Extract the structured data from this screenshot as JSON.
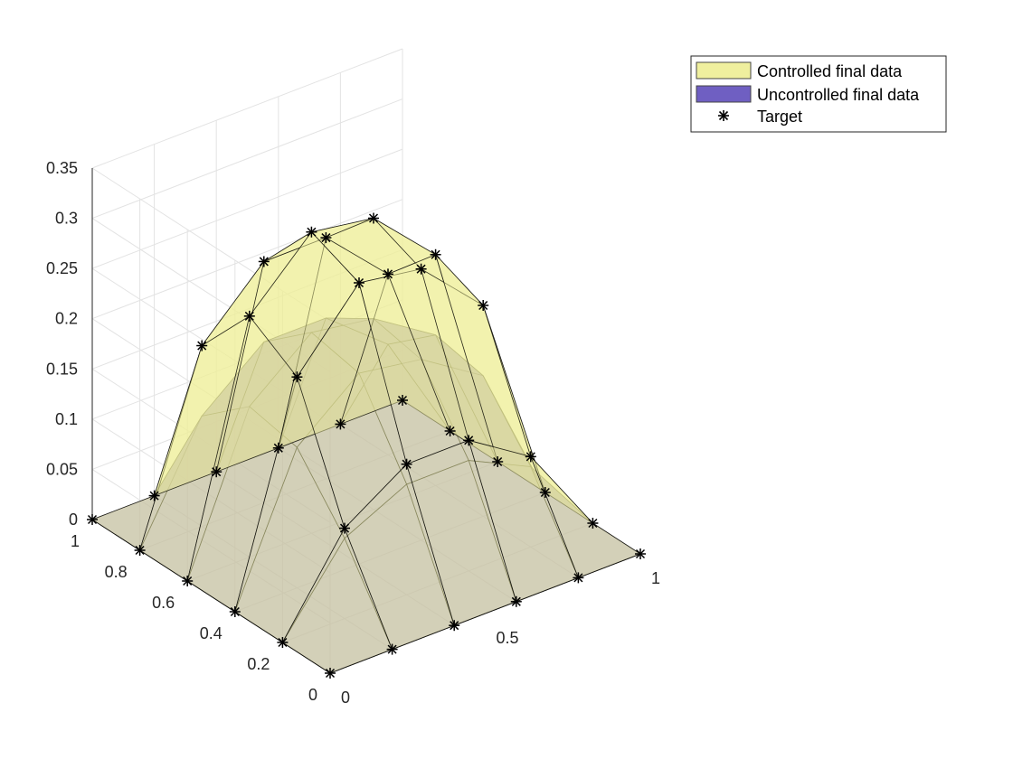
{
  "chart_data": {
    "type": "surface3d",
    "view": "isometric-3d",
    "xlim": [
      0,
      1
    ],
    "ylim": [
      0,
      1
    ],
    "zlim": [
      0,
      0.35
    ],
    "x_ticks": [
      "0",
      "0.5",
      "1"
    ],
    "y_ticks": [
      "0",
      "0.2",
      "0.4",
      "0.6",
      "0.8",
      "1"
    ],
    "z_ticks": [
      "0",
      "0.05",
      "0.1",
      "0.15",
      "0.2",
      "0.25",
      "0.3",
      "0.35"
    ],
    "grid": true,
    "legend_position": "top-right",
    "grid_x": [
      0,
      0.2,
      0.4,
      0.6,
      0.8,
      1.0
    ],
    "grid_y": [
      0,
      0.2,
      0.4,
      0.6,
      0.8,
      1.0
    ],
    "series": [
      {
        "name": "Controlled final data",
        "kind": "surface",
        "color": "#eeee99",
        "alpha": 0.55,
        "z": [
          [
            0,
            0,
            0,
            0,
            0,
            0
          ],
          [
            0,
            0.09,
            0.13,
            0.13,
            0.09,
            0
          ],
          [
            0,
            0.21,
            0.28,
            0.27,
            0.21,
            0
          ],
          [
            0,
            0.24,
            0.3,
            0.29,
            0.23,
            0
          ],
          [
            0,
            0.18,
            0.24,
            0.24,
            0.18,
            0
          ],
          [
            0,
            0,
            0,
            0,
            0,
            0
          ]
        ]
      },
      {
        "name": "Uncontrolled final data",
        "kind": "surface",
        "color": "#6655bb",
        "alpha": 0.5,
        "z": [
          [
            0,
            0,
            0,
            0,
            0,
            0
          ],
          [
            0,
            0.08,
            0.11,
            0.11,
            0.08,
            0
          ],
          [
            0,
            0.14,
            0.19,
            0.18,
            0.14,
            0
          ],
          [
            0,
            0.15,
            0.2,
            0.19,
            0.15,
            0
          ],
          [
            0,
            0.11,
            0.16,
            0.16,
            0.11,
            0
          ],
          [
            0,
            0,
            0,
            0,
            0,
            0
          ]
        ]
      },
      {
        "name": "Target",
        "kind": "markers",
        "marker": "*",
        "color": "#000000",
        "z": [
          [
            0,
            0,
            0,
            0,
            0,
            0
          ],
          [
            0,
            0.09,
            0.13,
            0.13,
            0.09,
            0
          ],
          [
            0,
            0.21,
            0.28,
            0.27,
            0.21,
            0
          ],
          [
            0,
            0.24,
            0.3,
            0.29,
            0.23,
            0
          ],
          [
            0,
            0.18,
            0.24,
            0.24,
            0.18,
            0
          ],
          [
            0,
            0,
            0,
            0,
            0,
            0
          ]
        ]
      }
    ]
  }
}
